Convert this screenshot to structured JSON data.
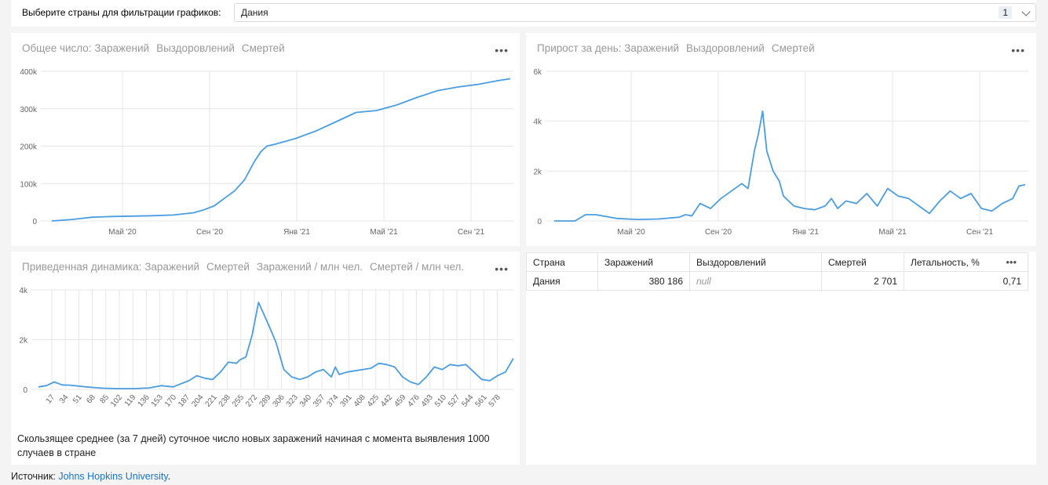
{
  "filter": {
    "label": "Выберите страны для фильтрации графиков:",
    "value": "Дания",
    "count": "1"
  },
  "panels": {
    "total": {
      "title_active": "Общее число: Заражений",
      "tabs": [
        "Выздоровлений",
        "Смертей"
      ],
      "menu": "•••"
    },
    "daily": {
      "title_active": "Прирост за день: Заражений",
      "tabs": [
        "Выздоровлений",
        "Смертей"
      ],
      "menu": "•••"
    },
    "normalized": {
      "title_active": "Приведенная динамика: Заражений",
      "tabs": [
        "Смертей",
        "Заражений / млн чел.",
        "Смертей / млн чел."
      ],
      "menu": "•••",
      "note": "Скользящее среднее (за 7 дней) суточное число новых заражений начиная с момента выявления 1000 случаев в стране"
    }
  },
  "table": {
    "headers": [
      "Страна",
      "Заражений",
      "Выздоровлений",
      "Смертей",
      "Летальность, %"
    ],
    "menu": "•••",
    "rows": [
      [
        "Дания",
        "380 186",
        "null",
        "2 701",
        "0,71"
      ]
    ]
  },
  "source": {
    "label": "Источник: ",
    "link": "Johns Hopkins University",
    "suffix": "."
  },
  "colors": {
    "line": "#4a9de0",
    "grid": "#e6e6e6"
  },
  "chart_data": [
    {
      "type": "line",
      "title": "Общее число: Заражений",
      "x_tick_labels": [
        "Май '20",
        "Сен '20",
        "Янв '21",
        "Май '21",
        "Сен '21"
      ],
      "y_tick_labels": [
        "0",
        "100k",
        "200k",
        "300k",
        "400k"
      ],
      "ylim": [
        0,
        400000
      ],
      "x_unit": "months since Mar '20",
      "x": [
        0,
        1,
        2,
        3,
        4,
        5,
        6,
        7,
        7.5,
        8,
        8.5,
        9,
        9.5,
        10,
        10.3,
        10.6,
        11,
        12,
        13,
        14,
        15,
        16,
        17,
        18,
        19,
        20,
        21,
        22,
        22.6
      ],
      "values": [
        0,
        4000,
        10000,
        12000,
        13000,
        14000,
        16000,
        22000,
        30000,
        40000,
        60000,
        80000,
        110000,
        160000,
        185000,
        200000,
        205000,
        220000,
        240000,
        265000,
        290000,
        295000,
        310000,
        330000,
        348000,
        358000,
        365000,
        375000,
        380186
      ]
    },
    {
      "type": "line",
      "title": "Прирост за день: Заражений",
      "x_tick_labels": [
        "Май '20",
        "Сен '20",
        "Янв '21",
        "Май '21",
        "Сен '21"
      ],
      "y_tick_labels": [
        "0",
        "2k",
        "4k",
        "6k"
      ],
      "ylim": [
        0,
        6000
      ],
      "x_unit": "months since Mar '20",
      "x": [
        0,
        1,
        1.5,
        2,
        3,
        4,
        5,
        6,
        6.3,
        6.6,
        7,
        7.5,
        8,
        8.5,
        9,
        9.3,
        9.6,
        9.8,
        10,
        10.2,
        10.5,
        10.8,
        11,
        11.5,
        12,
        12.5,
        13,
        13.3,
        13.6,
        14,
        14.5,
        15,
        15.5,
        16,
        16.5,
        17,
        17.5,
        18,
        18.5,
        19,
        19.5,
        20,
        20.5,
        21,
        21.5,
        22,
        22.3,
        22.6
      ],
      "values": [
        0,
        0,
        250,
        250,
        100,
        60,
        80,
        150,
        250,
        200,
        700,
        500,
        900,
        1200,
        1500,
        1300,
        2800,
        3500,
        4400,
        2800,
        2000,
        1600,
        1000,
        600,
        500,
        450,
        600,
        900,
        500,
        800,
        700,
        1100,
        600,
        1300,
        1000,
        900,
        600,
        300,
        800,
        1200,
        900,
        1100,
        500,
        400,
        700,
        900,
        1400,
        1450
      ]
    },
    {
      "type": "line",
      "title": "Приведенная динамика: Заражений",
      "x_tick_labels": [
        "17",
        "34",
        "51",
        "68",
        "85",
        "102",
        "119",
        "136",
        "153",
        "170",
        "187",
        "204",
        "221",
        "238",
        "255",
        "272",
        "289",
        "306",
        "323",
        "340",
        "357",
        "374",
        "391",
        "408",
        "425",
        "442",
        "459",
        "476",
        "493",
        "510",
        "527",
        "544",
        "561",
        "578"
      ],
      "y_tick_labels": [
        "0",
        "2k",
        "4k"
      ],
      "ylim": [
        0,
        4000
      ],
      "x_unit": "days since 1000 cases",
      "x": [
        0,
        10,
        20,
        30,
        40,
        60,
        80,
        100,
        120,
        140,
        155,
        170,
        190,
        200,
        210,
        220,
        230,
        240,
        250,
        255,
        262,
        270,
        278,
        285,
        292,
        300,
        310,
        320,
        330,
        340,
        350,
        360,
        370,
        375,
        380,
        390,
        400,
        410,
        420,
        430,
        440,
        450,
        460,
        470,
        480,
        490,
        500,
        510,
        520,
        530,
        540,
        550,
        560,
        570,
        580,
        590,
        600
      ],
      "values": [
        100,
        150,
        300,
        180,
        170,
        100,
        50,
        30,
        30,
        60,
        150,
        100,
        350,
        550,
        450,
        400,
        700,
        1100,
        1050,
        1200,
        1300,
        2200,
        3500,
        3000,
        2500,
        1900,
        800,
        500,
        400,
        500,
        700,
        800,
        500,
        900,
        600,
        700,
        750,
        800,
        850,
        1050,
        1000,
        900,
        500,
        300,
        200,
        500,
        900,
        800,
        1000,
        950,
        1000,
        700,
        400,
        350,
        550,
        700,
        1250
      ]
    }
  ]
}
